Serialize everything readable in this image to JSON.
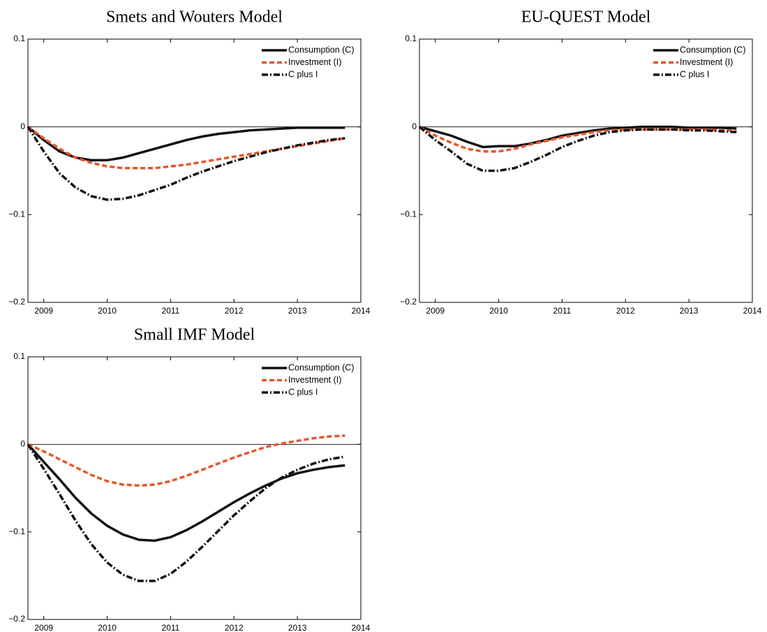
{
  "chart_data": [
    {
      "type": "line",
      "title": "Smets and Wouters Model",
      "x": [
        2008.75,
        2009,
        2009.25,
        2009.5,
        2009.75,
        2010,
        2010.25,
        2010.5,
        2010.75,
        2011,
        2011.25,
        2011.5,
        2011.75,
        2012,
        2012.25,
        2012.5,
        2012.75,
        2013,
        2013.25,
        2013.5,
        2013.75
      ],
      "series": [
        {
          "name": "Consumption (C)",
          "color": "#111111",
          "style": "solid",
          "values": [
            0,
            -0.015,
            -0.028,
            -0.035,
            -0.038,
            -0.038,
            -0.035,
            -0.03,
            -0.025,
            -0.02,
            -0.015,
            -0.011,
            -0.008,
            -0.006,
            -0.004,
            -0.003,
            -0.002,
            -0.001,
            -0.001,
            -0.001,
            -0.001
          ]
        },
        {
          "name": "Investment (I)",
          "color": "#e8552a",
          "style": "dashed",
          "values": [
            0,
            -0.013,
            -0.025,
            -0.035,
            -0.041,
            -0.045,
            -0.047,
            -0.047,
            -0.047,
            -0.045,
            -0.043,
            -0.04,
            -0.037,
            -0.034,
            -0.031,
            -0.028,
            -0.025,
            -0.022,
            -0.019,
            -0.016,
            -0.013
          ]
        },
        {
          "name": "C plus I",
          "color": "#111111",
          "style": "dashdot",
          "values": [
            0,
            -0.028,
            -0.053,
            -0.069,
            -0.079,
            -0.083,
            -0.082,
            -0.078,
            -0.072,
            -0.066,
            -0.058,
            -0.051,
            -0.045,
            -0.039,
            -0.034,
            -0.029,
            -0.025,
            -0.021,
            -0.018,
            -0.015,
            -0.013
          ]
        }
      ],
      "xlim": [
        2008.75,
        2014
      ],
      "xticks": [
        2009,
        2010,
        2011,
        2012,
        2013,
        2014
      ],
      "ylim": [
        -0.2,
        0.1
      ],
      "yticks": [
        {
          "value": -0.2,
          "label": "−0.2"
        },
        {
          "value": -0.1,
          "label": "−0.1"
        },
        0,
        0.1
      ],
      "zero_line": true,
      "legend": "upper right"
    },
    {
      "type": "line",
      "title": "EU-QUEST Model",
      "x": [
        2008.75,
        2009,
        2009.25,
        2009.5,
        2009.75,
        2010,
        2010.25,
        2010.5,
        2010.75,
        2011,
        2011.25,
        2011.5,
        2011.75,
        2012,
        2012.25,
        2012.5,
        2012.75,
        2013,
        2013.25,
        2013.5,
        2013.75
      ],
      "series": [
        {
          "name": "Consumption (C)",
          "color": "#111111",
          "style": "solid",
          "values": [
            0,
            -0.005,
            -0.01,
            -0.017,
            -0.023,
            -0.022,
            -0.022,
            -0.019,
            -0.015,
            -0.01,
            -0.007,
            -0.004,
            -0.002,
            -0.001,
            0,
            0,
            0,
            -0.001,
            -0.001,
            -0.001,
            -0.002
          ]
        },
        {
          "name": "Investment (I)",
          "color": "#e8552a",
          "style": "dashed",
          "values": [
            0,
            -0.01,
            -0.018,
            -0.025,
            -0.028,
            -0.028,
            -0.025,
            -0.02,
            -0.016,
            -0.012,
            -0.009,
            -0.006,
            -0.004,
            -0.003,
            -0.003,
            -0.003,
            -0.003,
            -0.003,
            -0.003,
            -0.004,
            -0.004
          ]
        },
        {
          "name": "C plus I",
          "color": "#111111",
          "style": "dashdot",
          "values": [
            0,
            -0.015,
            -0.028,
            -0.042,
            -0.05,
            -0.05,
            -0.047,
            -0.04,
            -0.032,
            -0.023,
            -0.016,
            -0.01,
            -0.006,
            -0.004,
            -0.003,
            -0.003,
            -0.003,
            -0.004,
            -0.004,
            -0.005,
            -0.006
          ]
        }
      ],
      "xlim": [
        2008.75,
        2014
      ],
      "xticks": [
        2009,
        2010,
        2011,
        2012,
        2013,
        2014
      ],
      "ylim": [
        -0.2,
        0.1
      ],
      "yticks": [
        {
          "value": -0.2,
          "label": "−0.2"
        },
        {
          "value": -0.1,
          "label": "−0.1"
        },
        0,
        0.1
      ],
      "zero_line": true,
      "legend": "upper right"
    },
    {
      "type": "line",
      "title": "Small IMF Model",
      "x": [
        2008.75,
        2009,
        2009.25,
        2009.5,
        2009.75,
        2010,
        2010.25,
        2010.5,
        2010.75,
        2011,
        2011.25,
        2011.5,
        2011.75,
        2012,
        2012.25,
        2012.5,
        2012.75,
        2013,
        2013.25,
        2013.5,
        2013.75
      ],
      "series": [
        {
          "name": "Consumption (C)",
          "color": "#111111",
          "style": "solid",
          "values": [
            0,
            -0.02,
            -0.04,
            -0.061,
            -0.079,
            -0.093,
            -0.103,
            -0.109,
            -0.11,
            -0.106,
            -0.098,
            -0.088,
            -0.077,
            -0.066,
            -0.056,
            -0.047,
            -0.039,
            -0.033,
            -0.029,
            -0.026,
            -0.024
          ]
        },
        {
          "name": "Investment (I)",
          "color": "#e8552a",
          "style": "dashed",
          "values": [
            0,
            -0.008,
            -0.017,
            -0.026,
            -0.035,
            -0.042,
            -0.046,
            -0.047,
            -0.046,
            -0.042,
            -0.036,
            -0.029,
            -0.022,
            -0.015,
            -0.009,
            -0.003,
            0.001,
            0.004,
            0.007,
            0.009,
            0.01
          ]
        },
        {
          "name": "C plus I",
          "color": "#111111",
          "style": "dashdot",
          "values": [
            0,
            -0.028,
            -0.057,
            -0.087,
            -0.114,
            -0.135,
            -0.149,
            -0.156,
            -0.156,
            -0.148,
            -0.134,
            -0.117,
            -0.099,
            -0.081,
            -0.065,
            -0.05,
            -0.038,
            -0.029,
            -0.022,
            -0.017,
            -0.014
          ]
        }
      ],
      "xlim": [
        2008.75,
        2014
      ],
      "xticks": [
        2009,
        2010,
        2011,
        2012,
        2013,
        2014
      ],
      "ylim": [
        -0.2,
        0.1
      ],
      "yticks": [
        {
          "value": -0.2,
          "label": "−0.2"
        },
        {
          "value": -0.1,
          "label": "−0.1"
        },
        0,
        0.1
      ],
      "zero_line": true,
      "legend": "upper right"
    }
  ]
}
